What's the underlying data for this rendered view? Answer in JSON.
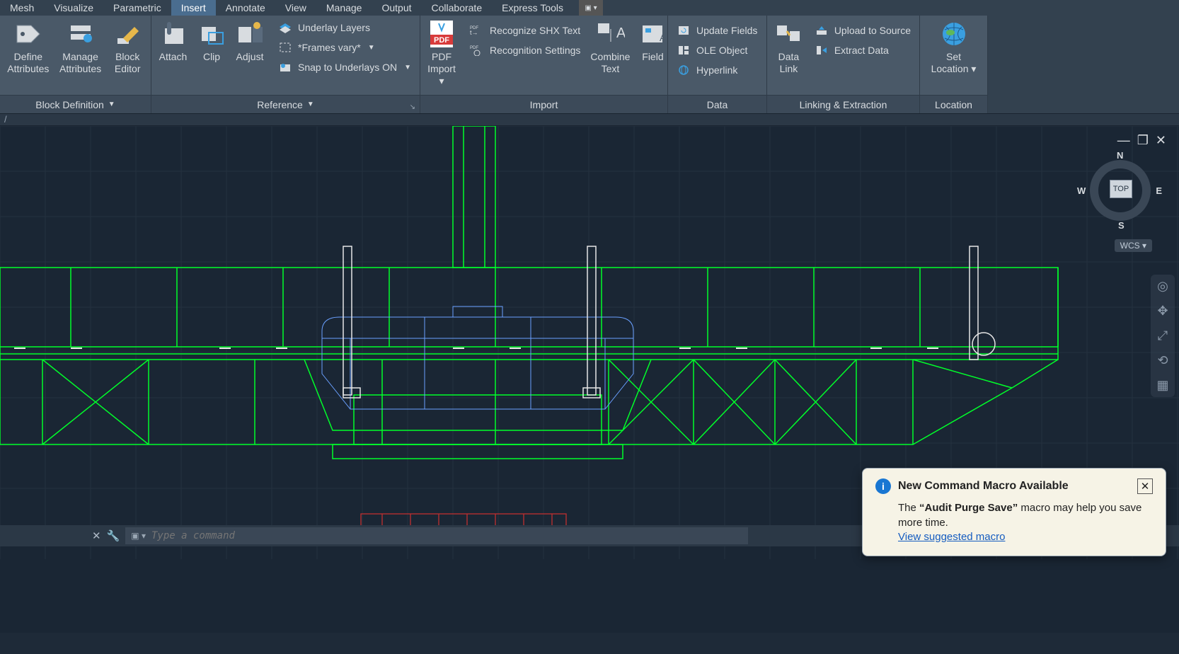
{
  "menubar": {
    "items": [
      "Mesh",
      "Visualize",
      "Parametric",
      "Insert",
      "Annotate",
      "View",
      "Manage",
      "Output",
      "Collaborate",
      "Express Tools"
    ],
    "active_index": 3
  },
  "ribbon": {
    "panels": [
      {
        "title": "Block Definition",
        "dropdown": true,
        "big_buttons": [
          {
            "label": "Define Attributes",
            "icon": "tag"
          },
          {
            "label": "Manage Attributes",
            "icon": "tags"
          },
          {
            "label": "Block Editor",
            "icon": "pencil"
          }
        ]
      },
      {
        "title": "Reference",
        "dropdown": true,
        "corner_launcher": true,
        "big_buttons": [
          {
            "label": "Attach",
            "icon": "clip"
          },
          {
            "label": "Clip",
            "icon": "crop"
          },
          {
            "label": "Adjust",
            "icon": "sliders"
          }
        ],
        "rows": [
          {
            "icon": "layers",
            "label": "Underlay Layers"
          },
          {
            "icon": "frame",
            "label": "*Frames vary*",
            "dropdown": true
          },
          {
            "icon": "snap",
            "label": "Snap to Underlays ON",
            "dropdown": true
          }
        ]
      },
      {
        "title": "Import",
        "big_buttons": [
          {
            "label": "PDF Import",
            "icon": "pdf",
            "dropdown": true
          }
        ],
        "rows": [
          {
            "icon": "shx",
            "label": "Recognize SHX Text"
          },
          {
            "icon": "gear",
            "label": "Recognition Settings"
          }
        ],
        "big_buttons_after": [
          {
            "label": "Combine Text",
            "icon": "combine"
          },
          {
            "label": "Field",
            "icon": "field"
          }
        ]
      },
      {
        "title": "Data",
        "rows": [
          {
            "icon": "update",
            "label": "Update Fields"
          },
          {
            "icon": "ole",
            "label": "OLE Object"
          },
          {
            "icon": "link",
            "label": "Hyperlink"
          }
        ]
      },
      {
        "title": "Linking & Extraction",
        "big_buttons": [
          {
            "label": "Data Link",
            "icon": "datalink"
          }
        ],
        "rows": [
          {
            "icon": "upload",
            "label": "Upload to Source"
          },
          {
            "icon": "extract",
            "label": "Extract  Data"
          }
        ]
      },
      {
        "title": "Location",
        "big_buttons": [
          {
            "label": "Set Location",
            "icon": "globe",
            "dropdown": true
          }
        ]
      }
    ]
  },
  "viewcube": {
    "face": "TOP",
    "dirs": {
      "n": "N",
      "e": "E",
      "s": "S",
      "w": "W"
    },
    "wcs": "WCS"
  },
  "toast": {
    "title": "New Command Macro Available",
    "body_prefix": "The ",
    "body_quote": "“Audit Purge Save”",
    "body_suffix": " macro may help you save more time.",
    "link": "View suggested macro"
  },
  "cmd": {
    "placeholder": "Type a command"
  },
  "colors": {
    "menubar_bg": "#33414f",
    "ribbon_bg": "#4a5968",
    "panel_title_bg": "#3c4a59",
    "viewport_bg": "#1a2634",
    "grid": "#24313f",
    "wire_green": "#00ff2a",
    "wire_white": "#e6e6e6",
    "wire_blue": "#6aa0ff",
    "wire_red": "#c03030",
    "toast_bg": "#f6f3e6",
    "link": "#155cc0"
  }
}
